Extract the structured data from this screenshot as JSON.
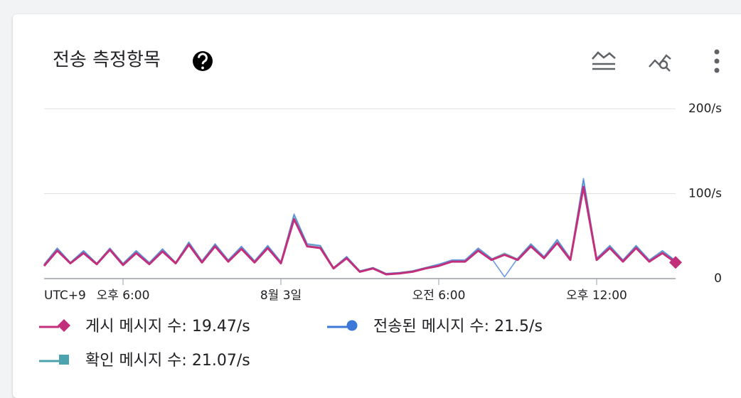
{
  "chart_data": {
    "type": "line",
    "title": "전송 측정항목",
    "x_axis_label": "UTC+9",
    "categories": [
      null,
      null,
      null,
      null,
      null,
      null,
      "오후 6:00",
      null,
      null,
      null,
      null,
      null,
      null,
      null,
      null,
      null,
      null,
      null,
      "8월 3일",
      null,
      null,
      null,
      null,
      null,
      null,
      null,
      null,
      null,
      null,
      null,
      "오전 6:00",
      null,
      null,
      null,
      null,
      null,
      null,
      null,
      null,
      null,
      null,
      null,
      "오후 12:00",
      null,
      null,
      null,
      null,
      null,
      null
    ],
    "series": [
      {
        "name": "게시 메시지 수: 19.47/s",
        "color": "#c2307c",
        "marker": "diamond",
        "values": [
          15,
          33,
          18,
          30,
          17,
          34,
          16,
          30,
          17,
          32,
          18,
          40,
          19,
          38,
          20,
          35,
          19,
          36,
          18,
          70,
          38,
          36,
          12,
          24,
          8,
          12,
          5,
          6,
          8,
          12,
          15,
          20,
          20,
          33,
          22,
          28,
          22,
          38,
          24,
          42,
          22,
          108,
          22,
          36,
          20,
          36,
          20,
          30,
          19
        ]
      },
      {
        "name": "전송된 메시지 수: 21.5/s",
        "color": "#3b78d8",
        "marker": "circle",
        "values": [
          17,
          36,
          19,
          33,
          18,
          36,
          18,
          33,
          19,
          35,
          19,
          43,
          21,
          41,
          22,
          38,
          21,
          39,
          20,
          76,
          41,
          39,
          13,
          26,
          9,
          13,
          6,
          7,
          9,
          13,
          17,
          22,
          22,
          36,
          24,
          2,
          24,
          41,
          26,
          46,
          24,
          118,
          24,
          39,
          22,
          39,
          22,
          33,
          21
        ]
      },
      {
        "name": "확인 메시지 수: 21.07/s",
        "color": "#4ba3ae",
        "marker": "square",
        "values": [
          16,
          35,
          19,
          32,
          18,
          35,
          17,
          32,
          18,
          34,
          19,
          42,
          20,
          40,
          21,
          37,
          20,
          38,
          19,
          74,
          40,
          38,
          13,
          25,
          9,
          13,
          6,
          7,
          9,
          13,
          16,
          21,
          21,
          35,
          23,
          30,
          23,
          40,
          25,
          45,
          23,
          115,
          23,
          38,
          21,
          38,
          21,
          32,
          21
        ]
      }
    ],
    "ylim": [
      0,
      200
    ],
    "yticks": [
      0,
      {
        "value": 100,
        "label": "100/s"
      },
      {
        "value": 200,
        "label": "200/s"
      }
    ],
    "grid": true
  }
}
